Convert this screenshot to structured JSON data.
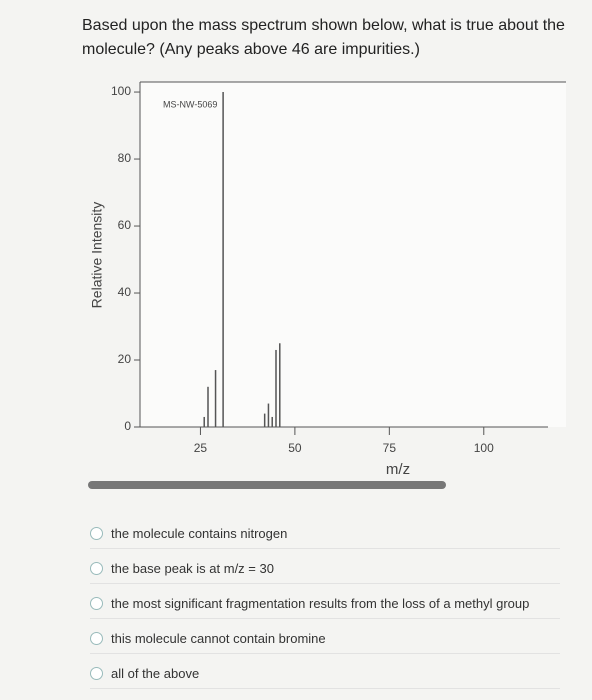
{
  "question": "Based upon the mass spectrum shown below, what is true about the molecule? (Any peaks above 46 are impurities.)",
  "chart_data": {
    "type": "bar",
    "annotation": "MS-NW-5069",
    "x": [
      26,
      27,
      29,
      31,
      42,
      43,
      44,
      45,
      46
    ],
    "values": [
      3,
      12,
      17,
      100,
      4,
      7,
      3,
      23,
      25
    ],
    "color": "#555555",
    "xlim": [
      9,
      117
    ],
    "xticks": [
      25,
      50,
      75,
      100
    ],
    "ylim": [
      0,
      103
    ],
    "yticks": [
      0,
      20,
      40,
      60,
      80,
      100
    ],
    "xlabel": "m/z",
    "ylabel": "Relative Intensity"
  },
  "options": [
    "the molecule contains nitrogen",
    "the base peak is at m/z = 30",
    "the most significant fragmentation results from the loss of a methyl group",
    "this molecule cannot contain bromine",
    "all of the above"
  ]
}
